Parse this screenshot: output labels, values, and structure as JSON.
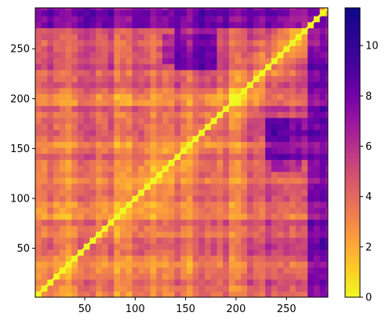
{
  "chart_data": {
    "type": "heatmap",
    "title": "",
    "xlabel": "",
    "ylabel": "",
    "x_range": [
      1,
      291
    ],
    "y_range": [
      1,
      291
    ],
    "x_ticks": [
      50,
      100,
      150,
      200,
      250
    ],
    "y_ticks": [
      50,
      100,
      150,
      200,
      250
    ],
    "y_origin": "bottom",
    "colormap": "plasma",
    "colormap_reversed": true,
    "value_range": [
      0,
      11.5
    ],
    "colorbar_ticks": [
      0,
      2,
      4,
      6,
      8,
      10
    ],
    "diagonal_value": 0,
    "symmetric": true,
    "description_note": "",
    "region_estimates": [
      {
        "x": [
          1,
          100
        ],
        "y": [
          1,
          100
        ],
        "mean": 3.0
      },
      {
        "x": [
          1,
          200
        ],
        "y": [
          1,
          200
        ],
        "mean": 3.5
      },
      {
        "x": [
          230,
          270
        ],
        "y": [
          140,
          180
        ],
        "mean": 9.5
      },
      {
        "x": [
          130,
          180
        ],
        "y": [
          235,
          265
        ],
        "mean": 9.0
      },
      {
        "x": [
          270,
          291
        ],
        "y": [
          1,
          291
        ],
        "mean": 8.5
      },
      {
        "x": [
          1,
          291
        ],
        "y": [
          270,
          291
        ],
        "mean": 8.0
      }
    ],
    "legend": "colorbar-right",
    "grid": false
  }
}
